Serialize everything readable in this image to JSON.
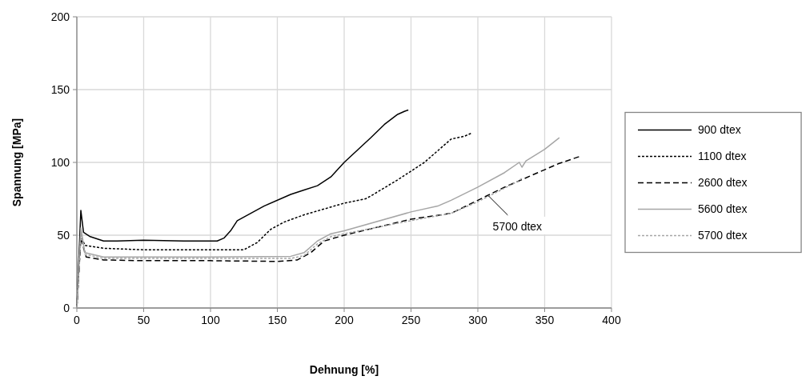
{
  "chart_data": {
    "type": "line",
    "xlabel": "Dehnung [%]",
    "ylabel": "Spannung [MPa]",
    "xlim": [
      0,
      400
    ],
    "ylim": [
      0,
      200
    ],
    "xticks": [
      0,
      50,
      100,
      150,
      200,
      250,
      300,
      350,
      400
    ],
    "yticks": [
      0,
      50,
      100,
      150,
      200
    ],
    "grid": true,
    "legend": "right",
    "annotations": [
      {
        "text": "5700 dtex",
        "x": 308,
        "y": 77
      }
    ],
    "series": [
      {
        "name": "900 dtex",
        "color": "#000000",
        "line_style": "solid",
        "x": [
          0,
          3,
          5,
          10,
          20,
          30,
          50,
          80,
          105,
          110,
          115,
          120,
          140,
          160,
          170,
          180,
          190,
          200,
          220,
          230,
          240,
          245,
          248
        ],
        "values": [
          0,
          67,
          52,
          49,
          46,
          46,
          46.5,
          46,
          46,
          48,
          53,
          60,
          70,
          78,
          81,
          84,
          90,
          100,
          117,
          126,
          133,
          135,
          136
        ]
      },
      {
        "name": "1100 dtex",
        "color": "#000000",
        "line_style": "dotted",
        "x": [
          0,
          3,
          6,
          20,
          50,
          100,
          125,
          135,
          145,
          155,
          170,
          200,
          216,
          220,
          240,
          260,
          280,
          290,
          295
        ],
        "values": [
          0,
          50,
          43,
          41,
          40,
          40,
          40,
          45,
          54,
          59,
          64,
          72,
          75,
          77,
          88,
          100,
          116,
          118,
          120
        ]
      },
      {
        "name": "2600 dtex",
        "color": "#000000",
        "line_style": "dashed",
        "x": [
          0,
          3,
          7,
          20,
          50,
          100,
          150,
          165,
          175,
          185,
          200,
          250,
          280,
          300,
          320,
          340,
          350,
          360,
          376
        ],
        "values": [
          0,
          48,
          35,
          33,
          32.5,
          32.5,
          32,
          33,
          38,
          46,
          50,
          61,
          65,
          74,
          83,
          91,
          95,
          99,
          104
        ]
      },
      {
        "name": "5600 dtex",
        "color": "#a6a6a6",
        "line_style": "solid",
        "x": [
          0,
          3,
          6,
          20,
          100,
          160,
          170,
          180,
          190,
          200,
          250,
          270,
          280,
          300,
          320,
          331,
          333,
          336,
          350,
          361
        ],
        "values": [
          0,
          55,
          38,
          35,
          35,
          35.5,
          38,
          46,
          51,
          53,
          66,
          70,
          74,
          83,
          93,
          100,
          96.7,
          101,
          109,
          117
        ]
      },
      {
        "name": "5700 dtex",
        "color": "#a6a6a6",
        "line_style": "dotted",
        "x": [
          0,
          3,
          6,
          20,
          100,
          160,
          170,
          180,
          190,
          200,
          250,
          280,
          300,
          330,
          333
        ],
        "values": [
          0,
          50,
          37,
          34,
          34,
          34,
          36,
          44,
          49,
          51,
          60,
          65,
          73,
          87,
          89
        ]
      }
    ]
  }
}
